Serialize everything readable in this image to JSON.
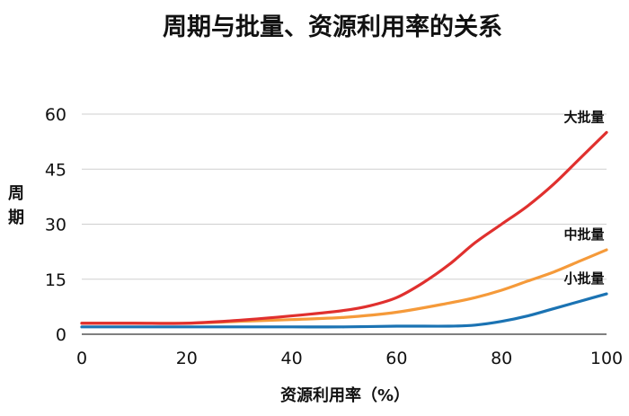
{
  "chart_data": {
    "type": "line",
    "title": "周期与批量、资源利用率的关系",
    "xlabel": "资源利用率（%）",
    "ylabel": "周期",
    "xlim": [
      0,
      100
    ],
    "ylim": [
      0,
      60
    ],
    "xticks": [
      0,
      20,
      40,
      60,
      80,
      100
    ],
    "yticks": [
      0,
      15,
      30,
      45,
      60
    ],
    "grid": true,
    "series": [
      {
        "name": "大批量",
        "color": "#e0302e",
        "x": [
          0,
          10,
          20,
          30,
          40,
          50,
          55,
          60,
          65,
          70,
          75,
          80,
          85,
          90,
          95,
          100
        ],
        "y": [
          3,
          3,
          3,
          3.8,
          5,
          6.5,
          7.8,
          10,
          14,
          19,
          25,
          30,
          35,
          41,
          48,
          55
        ]
      },
      {
        "name": "中批量",
        "color": "#f59a3a",
        "x": [
          0,
          10,
          20,
          30,
          40,
          50,
          60,
          70,
          75,
          80,
          85,
          90,
          95,
          100
        ],
        "y": [
          3,
          3,
          3,
          3.5,
          4,
          4.6,
          6,
          8.5,
          10,
          12,
          14.5,
          17,
          20,
          23
        ]
      },
      {
        "name": "小批量",
        "color": "#1b73b3",
        "x": [
          0,
          10,
          20,
          30,
          40,
          50,
          60,
          70,
          75,
          80,
          85,
          90,
          95,
          100
        ],
        "y": [
          2,
          2,
          2,
          2,
          2,
          2,
          2.2,
          2.2,
          2.5,
          3.5,
          5,
          7,
          9,
          11
        ]
      }
    ]
  }
}
